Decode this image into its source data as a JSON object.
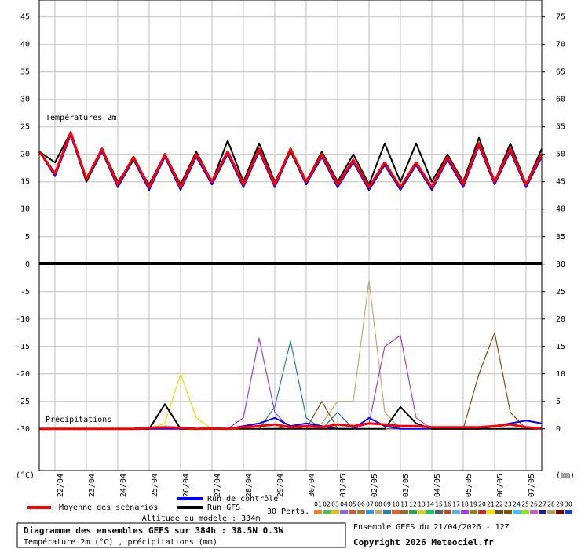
{
  "chart_data": {
    "type": "line",
    "x": [
      0,
      12,
      24,
      36,
      48,
      60,
      72,
      84,
      96,
      108,
      120,
      132,
      144,
      156,
      168,
      180,
      192,
      204,
      216,
      228,
      240,
      252,
      264,
      276,
      288,
      300,
      312,
      324,
      336,
      348,
      360,
      372,
      384
    ],
    "xlim": [
      0,
      384
    ],
    "xticks": [
      {
        "value": 12,
        "label": "22/04"
      },
      {
        "value": 36,
        "label": "23/04"
      },
      {
        "value": 60,
        "label": "24/04"
      },
      {
        "value": 84,
        "label": "25/04"
      },
      {
        "value": 108,
        "label": "26/04"
      },
      {
        "value": 132,
        "label": "27/04"
      },
      {
        "value": 156,
        "label": "28/04"
      },
      {
        "value": 180,
        "label": "29/04"
      },
      {
        "value": 204,
        "label": "30/04"
      },
      {
        "value": 228,
        "label": "01/05"
      },
      {
        "value": 252,
        "label": "02/05"
      },
      {
        "value": 276,
        "label": "03/05"
      },
      {
        "value": 300,
        "label": "04/05"
      },
      {
        "value": 324,
        "label": "05/05"
      },
      {
        "value": 348,
        "label": "06/05"
      },
      {
        "value": 372,
        "label": "07/05"
      }
    ],
    "ylim": [
      -37.6,
      48.1
    ],
    "yticks": [
      45,
      40,
      35,
      30,
      25,
      20,
      15,
      10,
      5,
      0,
      -5,
      -10,
      -15,
      -20,
      -25,
      -30
    ],
    "y2lim": [
      -7.6,
      78.1
    ],
    "y2ticks": [
      75,
      70,
      65,
      60,
      55,
      50,
      45,
      40,
      35,
      30,
      25,
      20,
      15,
      10,
      5,
      0
    ],
    "grid": true,
    "y_unit": "(°C)",
    "y2_unit": "(mm)",
    "temperature_label": "Températures 2m",
    "precipitation_label": "Précipitations",
    "series": [
      {
        "name": "Moyenne des scénarios",
        "color": "#ff0000",
        "values": [
          20.5,
          16.5,
          24,
          15.5,
          21,
          14.5,
          19.5,
          14,
          20,
          14,
          20,
          15,
          20.5,
          14.5,
          21,
          14.5,
          21,
          15,
          20,
          14.5,
          19,
          14,
          18.5,
          14,
          18.5,
          14,
          19.5,
          14.5,
          22,
          15,
          21,
          14.5,
          20
        ],
        "precipitation": [
          0,
          0,
          0,
          0,
          0,
          0,
          0,
          0.2,
          0.3,
          0.2,
          0,
          0.1,
          0,
          0.3,
          0.5,
          0.8,
          0.3,
          0.5,
          0.3,
          0.8,
          0.5,
          1,
          0.8,
          0.5,
          0.5,
          0.3,
          0.3,
          0.3,
          0.3,
          0.5,
          0.8,
          0.3,
          0.1
        ]
      },
      {
        "name": "Run de contrôle",
        "color": "#0000ff",
        "values": [
          20.5,
          16,
          23.5,
          15,
          20.5,
          14,
          19,
          13.5,
          19.5,
          13.5,
          19.5,
          14.5,
          20,
          14,
          20.5,
          14,
          20.5,
          14.5,
          19.5,
          14,
          18.5,
          13.5,
          18,
          13.5,
          18,
          13.5,
          19,
          14,
          21.5,
          14.5,
          20.5,
          14,
          19.5
        ],
        "precipitation": [
          0,
          0,
          0,
          0,
          0,
          0,
          0,
          0,
          0,
          0,
          0,
          0,
          0,
          0.5,
          1,
          2,
          0.5,
          1,
          0.5,
          0,
          0,
          2,
          0.5,
          0,
          0,
          0,
          0,
          0,
          0,
          0.5,
          1,
          1.5,
          1
        ]
      },
      {
        "name": "Run GFS",
        "color": "#000000",
        "values": [
          20.5,
          18.5,
          24,
          15,
          21,
          15,
          19,
          14.5,
          20,
          14.5,
          20.5,
          15,
          22.5,
          15,
          22,
          15,
          20.5,
          15,
          20.5,
          15,
          20,
          14.5,
          22,
          15,
          22,
          15,
          20,
          15,
          23,
          15,
          22,
          14.5,
          21
        ],
        "precipitation": [
          0,
          0,
          0,
          0,
          0,
          0,
          0,
          0,
          4.5,
          0,
          0,
          0,
          0,
          0,
          0,
          0,
          0,
          0,
          0,
          0,
          0,
          0,
          0,
          4,
          1,
          0,
          0,
          0,
          0,
          0,
          0,
          0,
          0
        ]
      }
    ],
    "members_title": "30 Perts.",
    "members": [
      {
        "label": "01",
        "color": "#e8803c"
      },
      {
        "label": "02",
        "color": "#58b858"
      },
      {
        "label": "03",
        "color": "#d8c020"
      },
      {
        "label": "04",
        "color": "#8868d8"
      },
      {
        "label": "05",
        "color": "#c06040"
      },
      {
        "label": "06",
        "color": "#a08030"
      },
      {
        "label": "07",
        "color": "#3890e0"
      },
      {
        "label": "08",
        "color": "#c8a878",
        "precipitation": [
          0,
          0,
          0,
          0,
          0,
          0,
          0,
          0,
          0,
          0,
          0,
          0,
          0,
          0,
          0,
          0,
          0,
          0,
          1,
          5,
          5,
          27,
          3,
          0,
          0,
          0,
          0,
          0,
          0,
          0,
          0,
          0,
          0
        ]
      },
      {
        "label": "09",
        "color": "#2a80a0",
        "precipitation": [
          0,
          0,
          0,
          0,
          0,
          0,
          0,
          0,
          0,
          0,
          0,
          0,
          0,
          0,
          0,
          4,
          16,
          2,
          0,
          3,
          0,
          0,
          0,
          0,
          0,
          0,
          0,
          0,
          0,
          0,
          0,
          0,
          0
        ]
      },
      {
        "label": "10",
        "color": "#e06030"
      },
      {
        "label": "11",
        "color": "#986830"
      },
      {
        "label": "12",
        "color": "#30a060"
      },
      {
        "label": "13",
        "color": "#d0d030"
      },
      {
        "label": "14",
        "color": "#20c060"
      },
      {
        "label": "15",
        "color": "#506070"
      },
      {
        "label": "16",
        "color": "#b05020"
      },
      {
        "label": "17",
        "color": "#60b0e0"
      },
      {
        "label": "18",
        "color": "#a040e0",
        "precipitation": [
          0,
          0,
          0,
          0,
          0,
          0,
          0,
          0,
          0,
          0,
          0,
          0,
          0,
          2,
          16.5,
          3,
          0,
          0,
          0,
          0,
          0,
          1,
          15,
          17,
          2,
          0,
          0,
          0,
          0,
          0,
          0,
          0,
          0
        ]
      },
      {
        "label": "19",
        "color": "#908020"
      },
      {
        "label": "20",
        "color": "#c03030"
      },
      {
        "label": "21",
        "color": "#f0e000",
        "precipitation": [
          0,
          0,
          0,
          0,
          0,
          0,
          0,
          0,
          1,
          10,
          2,
          0,
          0,
          0,
          0,
          0,
          0,
          0,
          0,
          0,
          0,
          0,
          0,
          0,
          0,
          0,
          0,
          0,
          0,
          0,
          0,
          0,
          0
        ]
      },
      {
        "label": "22",
        "color": "#605030"
      },
      {
        "label": "23",
        "color": "#805010",
        "precipitation": [
          0,
          0,
          0,
          0,
          0,
          0,
          0,
          0,
          0,
          0,
          0,
          0,
          0,
          0,
          0,
          0,
          0.5,
          0,
          5,
          0,
          0,
          0,
          0,
          0,
          0,
          0,
          0,
          0,
          10,
          17.5,
          3,
          0,
          0
        ]
      },
      {
        "label": "24",
        "color": "#40c0f0"
      },
      {
        "label": "25",
        "color": "#90e030"
      },
      {
        "label": "26",
        "color": "#c060c0"
      },
      {
        "label": "27",
        "color": "#202080"
      },
      {
        "label": "28",
        "color": "#b0a060"
      },
      {
        "label": "29",
        "color": "#700000"
      },
      {
        "label": "30",
        "color": "#2040c0"
      }
    ],
    "altitude": "Altitude du modele : 334m",
    "title": "Diagramme des ensembles GEFS sur 384h : 38.5N 0.3W",
    "subtitle": "Température 2m (°C) , précipitations (mm)",
    "run_info": "Ensemble GEFS du 21/04/2026 - 12Z",
    "copyright": "Copyright 2026 Meteociel.fr"
  }
}
